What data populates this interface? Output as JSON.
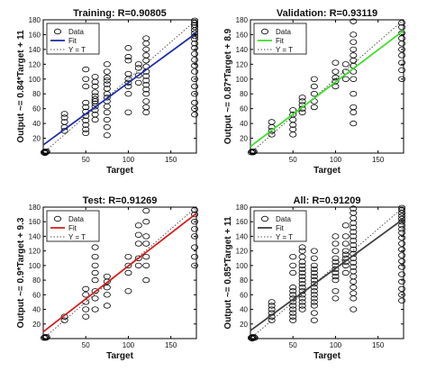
{
  "chart_data": [
    {
      "type": "scatter",
      "title": "Training: R=0.90805",
      "xlabel": "Target",
      "ylabel": "Output ~= 0.84*Target + 11",
      "xlim": [
        0,
        180
      ],
      "ylim": [
        0,
        180
      ],
      "xticks": [
        50,
        100,
        150
      ],
      "yticks": [
        20,
        40,
        60,
        80,
        100,
        120,
        140,
        160,
        180
      ],
      "legend": [
        "Data",
        "Fit",
        "Y = T"
      ],
      "legend_position": "top-left",
      "fit_color": "#1f2fa8",
      "fit": {
        "slope": 0.84,
        "intercept": 11
      },
      "grid": false,
      "points": [
        [
          1,
          1
        ],
        [
          2,
          2
        ],
        [
          3,
          1
        ],
        [
          4,
          2
        ],
        [
          2,
          0
        ],
        [
          25,
          30
        ],
        [
          25,
          35
        ],
        [
          25,
          42
        ],
        [
          25,
          48
        ],
        [
          25,
          53
        ],
        [
          50,
          27
        ],
        [
          50,
          32
        ],
        [
          50,
          38
        ],
        [
          50,
          44
        ],
        [
          50,
          50
        ],
        [
          50,
          56
        ],
        [
          50,
          62
        ],
        [
          50,
          68
        ],
        [
          50,
          90
        ],
        [
          50,
          100
        ],
        [
          50,
          113
        ],
        [
          61,
          45
        ],
        [
          61,
          52
        ],
        [
          61,
          58
        ],
        [
          61,
          63
        ],
        [
          61,
          67
        ],
        [
          61,
          70
        ],
        [
          61,
          73
        ],
        [
          61,
          77
        ],
        [
          61,
          82
        ],
        [
          61,
          90
        ],
        [
          61,
          96
        ],
        [
          61,
          103
        ],
        [
          75,
          24
        ],
        [
          75,
          35
        ],
        [
          75,
          45
        ],
        [
          75,
          55
        ],
        [
          75,
          63
        ],
        [
          75,
          70
        ],
        [
          75,
          75
        ],
        [
          75,
          80
        ],
        [
          75,
          87
        ],
        [
          75,
          93
        ],
        [
          75,
          98
        ],
        [
          75,
          102
        ],
        [
          75,
          110
        ],
        [
          75,
          120
        ],
        [
          100,
          55
        ],
        [
          100,
          80
        ],
        [
          100,
          90
        ],
        [
          100,
          95
        ],
        [
          100,
          100
        ],
        [
          100,
          107
        ],
        [
          100,
          125
        ],
        [
          100,
          130
        ],
        [
          100,
          142
        ],
        [
          112,
          95
        ],
        [
          112,
          105
        ],
        [
          112,
          115
        ],
        [
          112,
          120
        ],
        [
          121,
          55
        ],
        [
          121,
          62
        ],
        [
          121,
          70
        ],
        [
          121,
          80
        ],
        [
          121,
          86
        ],
        [
          121,
          92
        ],
        [
          121,
          98
        ],
        [
          121,
          104
        ],
        [
          121,
          110
        ],
        [
          121,
          117
        ],
        [
          121,
          125
        ],
        [
          121,
          132
        ],
        [
          121,
          140
        ],
        [
          121,
          148
        ],
        [
          121,
          155
        ],
        [
          178,
          52
        ],
        [
          178,
          60
        ],
        [
          178,
          68
        ],
        [
          178,
          80
        ],
        [
          178,
          90
        ],
        [
          178,
          100
        ],
        [
          178,
          110
        ],
        [
          178,
          118
        ],
        [
          178,
          126
        ],
        [
          178,
          134
        ],
        [
          178,
          142
        ],
        [
          178,
          148
        ],
        [
          178,
          154
        ],
        [
          178,
          158
        ],
        [
          178,
          162
        ],
        [
          178,
          166
        ],
        [
          178,
          170
        ],
        [
          178,
          173
        ],
        [
          178,
          176
        ],
        [
          178,
          179
        ]
      ]
    },
    {
      "type": "scatter",
      "title": "Validation: R=0.93119",
      "xlabel": "Target",
      "ylabel": "Output ~= 0.87*Target + 8.9",
      "xlim": [
        0,
        180
      ],
      "ylim": [
        0,
        180
      ],
      "xticks": [
        50,
        100,
        150
      ],
      "yticks": [
        20,
        40,
        60,
        80,
        100,
        120,
        140,
        160,
        180
      ],
      "legend": [
        "Data",
        "Fit",
        "Y = T"
      ],
      "legend_position": "top-left",
      "fit_color": "#3ee02a",
      "fit": {
        "slope": 0.87,
        "intercept": 8.9
      },
      "grid": false,
      "points": [
        [
          1,
          1
        ],
        [
          2,
          2
        ],
        [
          3,
          1
        ],
        [
          4,
          2
        ],
        [
          25,
          25
        ],
        [
          25,
          30
        ],
        [
          25,
          35
        ],
        [
          25,
          42
        ],
        [
          50,
          25
        ],
        [
          50,
          32
        ],
        [
          50,
          38
        ],
        [
          50,
          45
        ],
        [
          50,
          52
        ],
        [
          50,
          58
        ],
        [
          61,
          55
        ],
        [
          61,
          60
        ],
        [
          61,
          65
        ],
        [
          61,
          70
        ],
        [
          61,
          75
        ],
        [
          75,
          62
        ],
        [
          75,
          70
        ],
        [
          75,
          80
        ],
        [
          75,
          90
        ],
        [
          75,
          100
        ],
        [
          100,
          90
        ],
        [
          100,
          97
        ],
        [
          100,
          102
        ],
        [
          100,
          110
        ],
        [
          100,
          122
        ],
        [
          112,
          100
        ],
        [
          112,
          110
        ],
        [
          112,
          120
        ],
        [
          121,
          40
        ],
        [
          121,
          55
        ],
        [
          121,
          62
        ],
        [
          121,
          80
        ],
        [
          121,
          100
        ],
        [
          121,
          110
        ],
        [
          121,
          118
        ],
        [
          121,
          125
        ],
        [
          121,
          132
        ],
        [
          121,
          140
        ],
        [
          121,
          150
        ],
        [
          121,
          160
        ],
        [
          121,
          178
        ],
        [
          178,
          100
        ],
        [
          178,
          112
        ],
        [
          178,
          122
        ],
        [
          178,
          132
        ],
        [
          178,
          140
        ],
        [
          178,
          148
        ],
        [
          178,
          155
        ],
        [
          178,
          162
        ],
        [
          178,
          170
        ],
        [
          178,
          176
        ]
      ]
    },
    {
      "type": "scatter",
      "title": "Test: R=0.91269",
      "xlabel": "Target",
      "ylabel": "Output ~= 0.9*Target + 9.3",
      "xlim": [
        0,
        180
      ],
      "ylim": [
        0,
        180
      ],
      "xticks": [
        50,
        100,
        150
      ],
      "yticks": [
        20,
        40,
        60,
        80,
        100,
        120,
        140,
        160,
        180
      ],
      "legend": [
        "Data",
        "Fit",
        "Y = T"
      ],
      "legend_position": "top-left",
      "fit_color": "#d61f1f",
      "fit": {
        "slope": 0.9,
        "intercept": 9.3
      },
      "grid": false,
      "points": [
        [
          1,
          1
        ],
        [
          2,
          2
        ],
        [
          3,
          1
        ],
        [
          4,
          2
        ],
        [
          25,
          25
        ],
        [
          25,
          30
        ],
        [
          50,
          30
        ],
        [
          50,
          40
        ],
        [
          50,
          50
        ],
        [
          50,
          60
        ],
        [
          50,
          68
        ],
        [
          61,
          40
        ],
        [
          61,
          55
        ],
        [
          61,
          65
        ],
        [
          61,
          80
        ],
        [
          61,
          90
        ],
        [
          61,
          100
        ],
        [
          61,
          112
        ],
        [
          61,
          125
        ],
        [
          75,
          45
        ],
        [
          75,
          60
        ],
        [
          75,
          70
        ],
        [
          75,
          78
        ],
        [
          75,
          85
        ],
        [
          100,
          65
        ],
        [
          100,
          90
        ],
        [
          100,
          100
        ],
        [
          100,
          112
        ],
        [
          112,
          100
        ],
        [
          112,
          110
        ],
        [
          112,
          130
        ],
        [
          112,
          142
        ],
        [
          112,
          155
        ],
        [
          121,
          80
        ],
        [
          121,
          100
        ],
        [
          121,
          112
        ],
        [
          121,
          130
        ],
        [
          121,
          140
        ],
        [
          121,
          160
        ],
        [
          121,
          175
        ],
        [
          178,
          100
        ],
        [
          178,
          112
        ],
        [
          178,
          125
        ],
        [
          178,
          140
        ],
        [
          178,
          150
        ],
        [
          178,
          160
        ],
        [
          178,
          170
        ],
        [
          178,
          176
        ]
      ]
    },
    {
      "type": "scatter",
      "title": "All: R=0.91209",
      "xlabel": "Target",
      "ylabel": "Output ~= 0.85*Target + 11",
      "xlim": [
        0,
        180
      ],
      "ylim": [
        0,
        180
      ],
      "xticks": [
        50,
        100,
        150
      ],
      "yticks": [
        20,
        40,
        60,
        80,
        100,
        120,
        140,
        160,
        180
      ],
      "legend": [
        "Data",
        "Fit",
        "Y = T"
      ],
      "legend_position": "top-left",
      "fit_color": "#404040",
      "fit": {
        "slope": 0.85,
        "intercept": 11
      },
      "grid": false,
      "points": [
        [
          1,
          1
        ],
        [
          2,
          2
        ],
        [
          3,
          1
        ],
        [
          4,
          2
        ],
        [
          2,
          0
        ],
        [
          5,
          1
        ],
        [
          25,
          25
        ],
        [
          25,
          30
        ],
        [
          25,
          35
        ],
        [
          25,
          40
        ],
        [
          25,
          45
        ],
        [
          25,
          50
        ],
        [
          50,
          25
        ],
        [
          50,
          30
        ],
        [
          50,
          35
        ],
        [
          50,
          40
        ],
        [
          50,
          45
        ],
        [
          50,
          50
        ],
        [
          50,
          55
        ],
        [
          50,
          60
        ],
        [
          50,
          65
        ],
        [
          50,
          70
        ],
        [
          50,
          90
        ],
        [
          50,
          100
        ],
        [
          50,
          112
        ],
        [
          61,
          40
        ],
        [
          61,
          45
        ],
        [
          61,
          50
        ],
        [
          61,
          55
        ],
        [
          61,
          60
        ],
        [
          61,
          65
        ],
        [
          61,
          70
        ],
        [
          61,
          75
        ],
        [
          61,
          80
        ],
        [
          61,
          85
        ],
        [
          61,
          90
        ],
        [
          61,
          95
        ],
        [
          61,
          100
        ],
        [
          61,
          105
        ],
        [
          61,
          112
        ],
        [
          61,
          120
        ],
        [
          61,
          125
        ],
        [
          75,
          25
        ],
        [
          75,
          35
        ],
        [
          75,
          45
        ],
        [
          75,
          50
        ],
        [
          75,
          55
        ],
        [
          75,
          60
        ],
        [
          75,
          65
        ],
        [
          75,
          70
        ],
        [
          75,
          75
        ],
        [
          75,
          80
        ],
        [
          75,
          85
        ],
        [
          75,
          90
        ],
        [
          75,
          95
        ],
        [
          75,
          100
        ],
        [
          75,
          110
        ],
        [
          75,
          120
        ],
        [
          100,
          55
        ],
        [
          100,
          65
        ],
        [
          100,
          80
        ],
        [
          100,
          85
        ],
        [
          100,
          90
        ],
        [
          100,
          95
        ],
        [
          100,
          100
        ],
        [
          100,
          105
        ],
        [
          100,
          110
        ],
        [
          100,
          120
        ],
        [
          100,
          130
        ],
        [
          100,
          140
        ],
        [
          112,
          90
        ],
        [
          112,
          100
        ],
        [
          112,
          105
        ],
        [
          112,
          110
        ],
        [
          112,
          115
        ],
        [
          112,
          120
        ],
        [
          112,
          130
        ],
        [
          112,
          140
        ],
        [
          112,
          155
        ],
        [
          121,
          40
        ],
        [
          121,
          55
        ],
        [
          121,
          62
        ],
        [
          121,
          70
        ],
        [
          121,
          78
        ],
        [
          121,
          85
        ],
        [
          121,
          92
        ],
        [
          121,
          98
        ],
        [
          121,
          104
        ],
        [
          121,
          110
        ],
        [
          121,
          116
        ],
        [
          121,
          122
        ],
        [
          121,
          128
        ],
        [
          121,
          134
        ],
        [
          121,
          140
        ],
        [
          121,
          146
        ],
        [
          121,
          152
        ],
        [
          121,
          158
        ],
        [
          121,
          165
        ],
        [
          121,
          172
        ],
        [
          121,
          178
        ],
        [
          178,
          52
        ],
        [
          178,
          60
        ],
        [
          178,
          68
        ],
        [
          178,
          78
        ],
        [
          178,
          88
        ],
        [
          178,
          98
        ],
        [
          178,
          106
        ],
        [
          178,
          114
        ],
        [
          178,
          122
        ],
        [
          178,
          130
        ],
        [
          178,
          138
        ],
        [
          178,
          145
        ],
        [
          178,
          150
        ],
        [
          178,
          155
        ],
        [
          178,
          160
        ],
        [
          178,
          164
        ],
        [
          178,
          168
        ],
        [
          178,
          172
        ],
        [
          178,
          176
        ],
        [
          178,
          179
        ]
      ]
    }
  ]
}
